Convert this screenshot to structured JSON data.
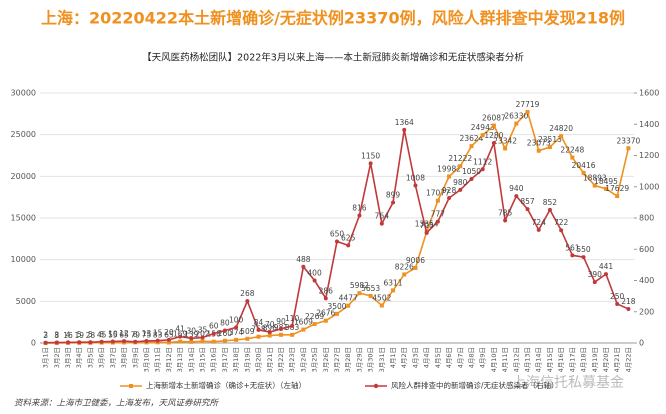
{
  "chart_data": {
    "type": "line",
    "title": "上海：20220422本土新增确诊/无症状例23370例，风险人群排查中发现218例",
    "subtitle": "【天风医药杨松团队】2022年3月以来上海——本土新冠肺炎新增确诊和无症状感染者分析",
    "source": "资料来源：上海市卫健委，上海发布，天风证券研究所",
    "watermark": "上海信托私募基金",
    "categories": [
      "3月1日",
      "3月2日",
      "3月3日",
      "3月4日",
      "3月5日",
      "3月6日",
      "3月7日",
      "3月8日",
      "3月9日",
      "3月10日",
      "3月11日",
      "3月12日",
      "3月13日",
      "3月14日",
      "3月15日",
      "3月16日",
      "3月17日",
      "3月18日",
      "3月19日",
      "3月20日",
      "3月21日",
      "3月22日",
      "3月23日",
      "3月24日",
      "3月25日",
      "3月26日",
      "3月27日",
      "3月28日",
      "3月29日",
      "3月30日",
      "3月31日",
      "4月1日",
      "4月2日",
      "4月3日",
      "4月4日",
      "4月5日",
      "4月6日",
      "4月7日",
      "4月8日",
      "4月9日",
      "4月10日",
      "4月11日",
      "4月12日",
      "4月13日",
      "4月14日",
      "4月15日",
      "4月16日",
      "4月17日",
      "4月18日",
      "4月19日",
      "4月20日",
      "4月21日",
      "4月22日"
    ],
    "series": [
      {
        "name": "上海新增本土新增确诊（确诊+无症状）（左轴）",
        "color": "#f0901e",
        "marker": "square",
        "values": [
          3,
          8,
          16,
          19,
          28,
          45,
          55,
          65,
          79,
          75,
          83,
          65,
          169,
          139,
          202,
          158,
          260,
          374,
          509,
          758,
          896,
          981,
          983,
          1609,
          2269,
          2676,
          3500,
          4477,
          5982,
          5653,
          4502,
          6311,
          8226,
          9006,
          13354,
          17077,
          19982,
          21222,
          23624,
          24943,
          26087,
          23342,
          26330,
          27719,
          23073,
          23513,
          24820,
          22248,
          20416,
          18893,
          18495,
          17629,
          23370
        ]
      },
      {
        "name": "风险人群排查中的新增确诊/无症状感染者（右轴）",
        "color": "#c0393b",
        "marker": "circle",
        "axis": "y2",
        "values": [
          2,
          3,
          4,
          5,
          5,
          8,
          10,
          12,
          8,
          13,
          15,
          20,
          41,
          30,
          35,
          60,
          80,
          100,
          268,
          84,
          70,
          90,
          110,
          488,
          400,
          286,
          650,
          625,
          816,
          1150,
          764,
          899,
          1364,
          1008,
          705,
          777,
          928,
          980,
          1050,
          1112,
          1280,
          785,
          940,
          857,
          724,
          852,
          722,
          561,
          550,
          390,
          441,
          250,
          218
        ]
      }
    ],
    "ylim": [
      0,
      30000
    ],
    "yticks": [
      0,
      5000,
      10000,
      15000,
      20000,
      25000,
      30000
    ],
    "y2lim": [
      0,
      1600
    ],
    "y2ticks": [
      0,
      200,
      400,
      600,
      800,
      1000,
      1200,
      1400,
      1600
    ],
    "grid": true
  }
}
